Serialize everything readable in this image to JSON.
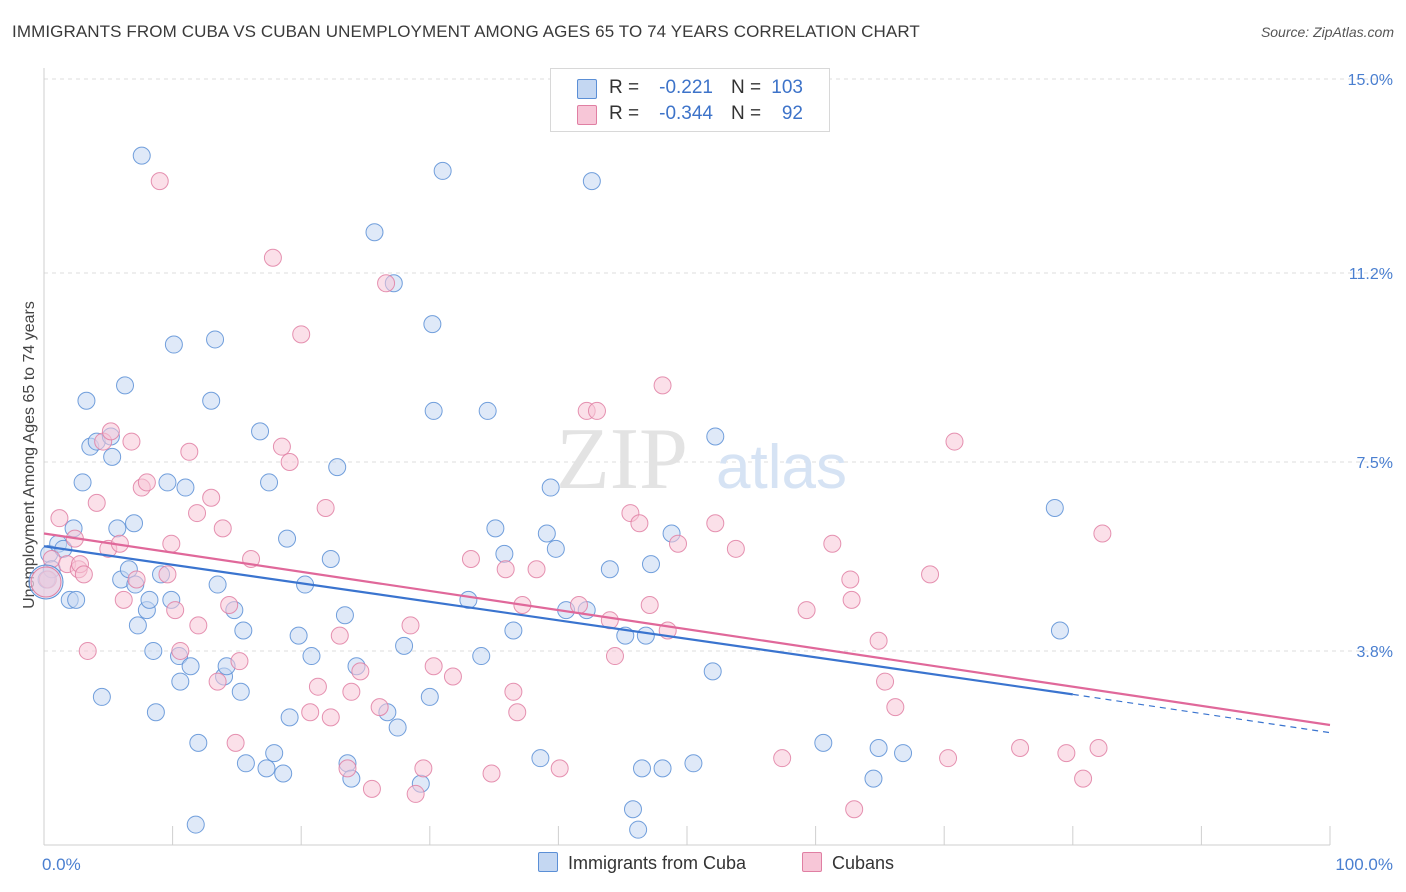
{
  "title": "IMMIGRANTS FROM CUBA VS CUBAN UNEMPLOYMENT AMONG AGES 65 TO 74 YEARS CORRELATION CHART",
  "source": "Source: ZipAtlas.com",
  "watermark": {
    "zip": "ZIP",
    "atlas": "atlas"
  },
  "legend_top": {
    "rows": [
      {
        "r_label": "R =",
        "r_value": "-0.221",
        "n_label": "N =",
        "n_value": "103",
        "color": "#5b8fd6",
        "fill": "#c4d7f2"
      },
      {
        "r_label": "R =",
        "r_value": "-0.344",
        "n_label": "N =",
        "n_value": "92",
        "color": "#e07fa3",
        "fill": "#f7c6d7"
      }
    ]
  },
  "legend_bottom": {
    "items": [
      {
        "label": "Immigrants from Cuba"
      },
      {
        "label": "Cubans"
      }
    ]
  },
  "chart_data": {
    "type": "scatter",
    "title": "IMMIGRANTS FROM CUBA VS CUBAN UNEMPLOYMENT AMONG AGES 65 TO 74 YEARS CORRELATION CHART",
    "xlabel": "",
    "ylabel": "Unemployment Among Ages 65 to 74 years",
    "xlim": [
      0,
      100
    ],
    "ylim": [
      0,
      15
    ],
    "x_tick_labels": [
      "0.0%",
      "100.0%"
    ],
    "y_tick_labels": [
      "3.8%",
      "7.5%",
      "11.2%",
      "15.0%"
    ],
    "y_tick_values": [
      3.8,
      7.5,
      11.2,
      15.0
    ],
    "series": [
      {
        "name": "Immigrants from Cuba",
        "color": "#5b8fd6",
        "fill": "#c4d7f2",
        "trend": {
          "x_start": 0,
          "y_start": 5.85,
          "x_end": 80,
          "y_end": 2.95,
          "dash_to_x": 100,
          "dash_to_y": 2.2
        },
        "points": [
          [
            0.2,
            5.2
          ],
          [
            0.4,
            5.7
          ],
          [
            0.6,
            5.4
          ],
          [
            1.1,
            5.9
          ],
          [
            1.5,
            5.8
          ],
          [
            2.0,
            4.8
          ],
          [
            2.3,
            6.2
          ],
          [
            2.5,
            4.8
          ],
          [
            3.0,
            7.1
          ],
          [
            3.3,
            8.7
          ],
          [
            3.6,
            7.8
          ],
          [
            4.1,
            7.9
          ],
          [
            4.5,
            2.9
          ],
          [
            5.2,
            8.0
          ],
          [
            5.3,
            7.6
          ],
          [
            5.7,
            6.2
          ],
          [
            6.0,
            5.2
          ],
          [
            6.3,
            9.0
          ],
          [
            6.6,
            5.4
          ],
          [
            7.0,
            6.3
          ],
          [
            7.1,
            5.1
          ],
          [
            7.3,
            4.3
          ],
          [
            7.6,
            13.5
          ],
          [
            8.0,
            4.6
          ],
          [
            8.2,
            4.8
          ],
          [
            8.5,
            3.8
          ],
          [
            8.7,
            2.6
          ],
          [
            9.1,
            5.3
          ],
          [
            9.6,
            7.1
          ],
          [
            9.9,
            4.8
          ],
          [
            10.1,
            9.8
          ],
          [
            10.5,
            3.7
          ],
          [
            10.6,
            3.2
          ],
          [
            11.0,
            7.0
          ],
          [
            11.4,
            3.5
          ],
          [
            11.8,
            0.4
          ],
          [
            12.0,
            2.0
          ],
          [
            13.0,
            8.7
          ],
          [
            13.3,
            9.9
          ],
          [
            13.5,
            5.1
          ],
          [
            14.0,
            3.3
          ],
          [
            14.2,
            3.5
          ],
          [
            14.8,
            4.6
          ],
          [
            15.3,
            3.0
          ],
          [
            15.5,
            4.2
          ],
          [
            15.7,
            1.6
          ],
          [
            16.8,
            8.1
          ],
          [
            17.3,
            1.5
          ],
          [
            17.5,
            7.1
          ],
          [
            17.9,
            1.8
          ],
          [
            18.6,
            1.4
          ],
          [
            18.9,
            6.0
          ],
          [
            19.1,
            2.5
          ],
          [
            19.8,
            4.1
          ],
          [
            20.3,
            5.1
          ],
          [
            20.8,
            3.7
          ],
          [
            22.3,
            5.6
          ],
          [
            22.8,
            7.4
          ],
          [
            23.4,
            4.5
          ],
          [
            23.6,
            1.6
          ],
          [
            23.9,
            1.3
          ],
          [
            24.3,
            3.5
          ],
          [
            25.7,
            12.0
          ],
          [
            26.7,
            2.6
          ],
          [
            27.2,
            11.0
          ],
          [
            27.5,
            2.3
          ],
          [
            28.0,
            3.9
          ],
          [
            29.3,
            1.2
          ],
          [
            30.0,
            2.9
          ],
          [
            30.2,
            10.2
          ],
          [
            30.3,
            8.5
          ],
          [
            31.0,
            13.2
          ],
          [
            33.0,
            4.8
          ],
          [
            34.0,
            3.7
          ],
          [
            34.5,
            8.5
          ],
          [
            35.1,
            6.2
          ],
          [
            35.8,
            5.7
          ],
          [
            36.5,
            4.2
          ],
          [
            38.6,
            1.7
          ],
          [
            39.1,
            6.1
          ],
          [
            39.4,
            7.0
          ],
          [
            39.8,
            5.8
          ],
          [
            40.6,
            4.6
          ],
          [
            42.2,
            4.6
          ],
          [
            42.6,
            13.0
          ],
          [
            44.0,
            5.4
          ],
          [
            45.2,
            4.1
          ],
          [
            45.8,
            0.7
          ],
          [
            46.2,
            0.3
          ],
          [
            46.5,
            1.5
          ],
          [
            46.8,
            4.1
          ],
          [
            47.2,
            5.5
          ],
          [
            48.1,
            1.5
          ],
          [
            48.8,
            6.1
          ],
          [
            50.5,
            1.6
          ],
          [
            52.0,
            3.4
          ],
          [
            52.2,
            8.0
          ],
          [
            60.6,
            2.0
          ],
          [
            64.5,
            1.3
          ],
          [
            64.9,
            1.9
          ],
          [
            66.8,
            1.8
          ],
          [
            78.6,
            6.6
          ],
          [
            79.0,
            4.2
          ]
        ]
      },
      {
        "name": "Cubans",
        "color": "#e07fa3",
        "fill": "#f7c6d7",
        "trend": {
          "x_start": 0,
          "y_start": 6.1,
          "x_end": 100,
          "y_end": 2.35
        },
        "points": [
          [
            0.3,
            5.2
          ],
          [
            0.6,
            5.6
          ],
          [
            1.2,
            6.4
          ],
          [
            1.8,
            5.5
          ],
          [
            2.4,
            6.0
          ],
          [
            2.7,
            5.4
          ],
          [
            2.8,
            5.5
          ],
          [
            3.1,
            5.3
          ],
          [
            3.4,
            3.8
          ],
          [
            4.1,
            6.7
          ],
          [
            4.6,
            7.9
          ],
          [
            5.0,
            5.8
          ],
          [
            5.2,
            8.1
          ],
          [
            5.9,
            5.9
          ],
          [
            6.2,
            4.8
          ],
          [
            6.8,
            7.9
          ],
          [
            7.2,
            5.2
          ],
          [
            7.6,
            7.0
          ],
          [
            8.0,
            7.1
          ],
          [
            9.0,
            13.0
          ],
          [
            9.6,
            5.3
          ],
          [
            9.9,
            5.9
          ],
          [
            10.2,
            4.6
          ],
          [
            10.6,
            3.8
          ],
          [
            11.3,
            7.7
          ],
          [
            11.9,
            6.5
          ],
          [
            12.0,
            4.3
          ],
          [
            13.0,
            6.8
          ],
          [
            13.5,
            3.2
          ],
          [
            13.9,
            6.2
          ],
          [
            14.4,
            4.7
          ],
          [
            14.9,
            2.0
          ],
          [
            15.2,
            3.6
          ],
          [
            16.1,
            5.6
          ],
          [
            17.8,
            11.5
          ],
          [
            18.5,
            7.8
          ],
          [
            19.1,
            7.5
          ],
          [
            20.0,
            10.0
          ],
          [
            20.7,
            2.6
          ],
          [
            21.3,
            3.1
          ],
          [
            21.9,
            6.6
          ],
          [
            22.3,
            2.5
          ],
          [
            23.0,
            4.1
          ],
          [
            23.6,
            1.5
          ],
          [
            23.9,
            3.0
          ],
          [
            24.6,
            3.4
          ],
          [
            25.5,
            1.1
          ],
          [
            26.1,
            2.7
          ],
          [
            26.6,
            11.0
          ],
          [
            28.5,
            4.3
          ],
          [
            28.9,
            1.0
          ],
          [
            29.5,
            1.5
          ],
          [
            30.3,
            3.5
          ],
          [
            31.8,
            3.3
          ],
          [
            33.2,
            5.6
          ],
          [
            34.8,
            1.4
          ],
          [
            35.9,
            5.4
          ],
          [
            36.5,
            3.0
          ],
          [
            36.8,
            2.6
          ],
          [
            37.2,
            4.7
          ],
          [
            38.3,
            5.4
          ],
          [
            40.1,
            1.5
          ],
          [
            41.6,
            4.7
          ],
          [
            42.2,
            8.5
          ],
          [
            43.0,
            8.5
          ],
          [
            44.0,
            4.4
          ],
          [
            44.4,
            3.7
          ],
          [
            45.6,
            6.5
          ],
          [
            46.3,
            6.3
          ],
          [
            47.1,
            4.7
          ],
          [
            48.1,
            9.0
          ],
          [
            48.5,
            4.2
          ],
          [
            49.3,
            5.9
          ],
          [
            52.2,
            6.3
          ],
          [
            53.8,
            5.8
          ],
          [
            57.4,
            1.7
          ],
          [
            59.3,
            4.6
          ],
          [
            61.3,
            5.9
          ],
          [
            62.7,
            5.2
          ],
          [
            62.8,
            4.8
          ],
          [
            63.0,
            0.7
          ],
          [
            64.9,
            4.0
          ],
          [
            65.4,
            3.2
          ],
          [
            66.2,
            2.7
          ],
          [
            68.9,
            5.3
          ],
          [
            70.3,
            1.7
          ],
          [
            70.8,
            7.9
          ],
          [
            75.9,
            1.9
          ],
          [
            79.5,
            1.8
          ],
          [
            80.8,
            1.3
          ],
          [
            82.0,
            1.9
          ],
          [
            82.3,
            6.1
          ]
        ]
      }
    ]
  }
}
